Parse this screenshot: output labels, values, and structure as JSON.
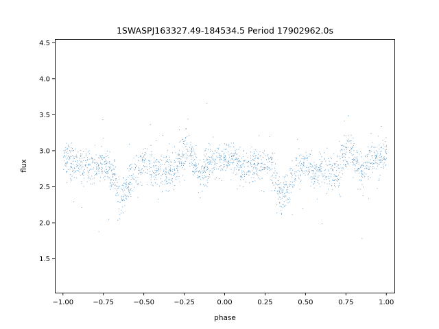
{
  "chart_data": {
    "type": "scatter",
    "title": "1SWASPJ163327.49-184534.5 Period 17902962.0s",
    "xlabel": "phase",
    "ylabel": "flux",
    "xlim": [
      -1.05,
      1.05
    ],
    "ylim": [
      1.03,
      4.55
    ],
    "xticks": [
      -1.0,
      -0.75,
      -0.5,
      -0.25,
      0.0,
      0.25,
      0.5,
      0.75,
      1.0
    ],
    "xtick_labels": [
      "−1.00",
      "−0.75",
      "−0.50",
      "−0.25",
      "0.00",
      "0.25",
      "0.50",
      "0.75",
      "1.00"
    ],
    "yticks": [
      1.5,
      2.0,
      2.5,
      3.0,
      3.5,
      4.0,
      4.5
    ],
    "ytick_labels": [
      "1.5",
      "2.0",
      "2.5",
      "3.0",
      "3.5",
      "4.0",
      "4.5"
    ],
    "grid": false,
    "legend": "none",
    "marker_color": "#1f77b4",
    "series": [
      {
        "x": [
          -1.0,
          -0.95,
          -0.9,
          -0.85,
          -0.8,
          -0.75,
          -0.7,
          -0.68,
          -0.65,
          -0.6,
          -0.55,
          -0.5,
          -0.45,
          -0.4,
          -0.35,
          -0.3,
          -0.25,
          -0.22,
          -0.2,
          -0.15,
          -0.1,
          -0.05,
          0.0,
          0.05,
          0.1,
          0.15,
          0.2,
          0.25,
          0.3,
          0.32,
          0.35,
          0.4,
          0.45,
          0.5,
          0.55,
          0.6,
          0.65,
          0.7,
          0.75,
          0.78,
          0.8,
          0.85,
          0.9,
          0.95,
          1.0
        ],
        "y": [
          2.95,
          2.85,
          2.8,
          2.75,
          2.8,
          2.85,
          2.7,
          2.6,
          2.3,
          2.55,
          2.75,
          2.85,
          2.7,
          2.75,
          2.7,
          2.75,
          3.0,
          3.05,
          2.9,
          2.7,
          2.85,
          2.9,
          2.85,
          2.9,
          2.8,
          2.75,
          2.8,
          2.85,
          2.7,
          2.6,
          2.3,
          2.55,
          2.75,
          2.85,
          2.7,
          2.75,
          2.7,
          2.75,
          3.0,
          3.05,
          2.9,
          2.7,
          2.85,
          2.9,
          2.95
        ]
      }
    ]
  }
}
